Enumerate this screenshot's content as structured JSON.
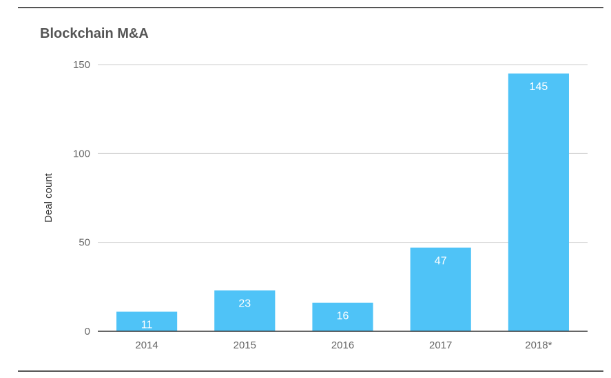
{
  "chart_data": {
    "type": "bar",
    "title": "Blockchain M&A",
    "xlabel": "",
    "ylabel": "Deal count",
    "categories": [
      "2014",
      "2015",
      "2016",
      "2017",
      "2018*"
    ],
    "values": [
      11,
      23,
      16,
      47,
      145
    ],
    "ylim": [
      0,
      150
    ],
    "yticks": [
      0,
      50,
      100,
      150
    ],
    "grid": true,
    "legend": "none",
    "bar_color": "#4fc3f7",
    "data_labels": true
  }
}
